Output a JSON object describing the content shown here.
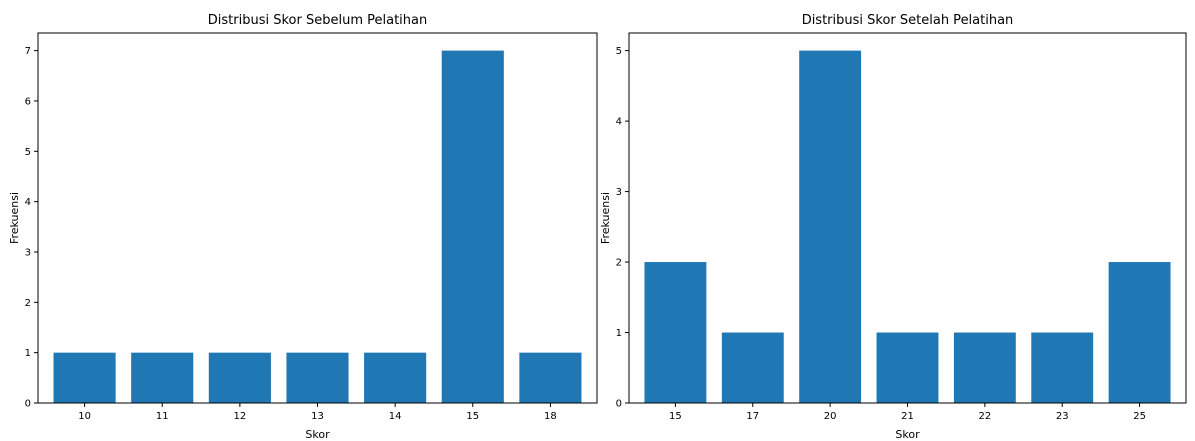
{
  "chart_data": [
    {
      "type": "bar",
      "title": "Distribusi Skor Sebelum Pelatihan",
      "xlabel": "Skor",
      "ylabel": "Frekuensi",
      "categories": [
        "10",
        "11",
        "12",
        "13",
        "14",
        "15",
        "18"
      ],
      "values": [
        1,
        1,
        1,
        1,
        1,
        7,
        1
      ],
      "ylim": [
        0,
        7.35
      ],
      "yticks": [
        0,
        1,
        2,
        3,
        4,
        5,
        6,
        7
      ],
      "grid": false,
      "bar_color": "#1f77b4"
    },
    {
      "type": "bar",
      "title": "Distribusi Skor Setelah Pelatihan",
      "xlabel": "Skor",
      "ylabel": "Frekuensi",
      "categories": [
        "15",
        "17",
        "20",
        "21",
        "22",
        "23",
        "25"
      ],
      "values": [
        2,
        1,
        5,
        1,
        1,
        1,
        2
      ],
      "ylim": [
        0,
        5.25
      ],
      "yticks": [
        0,
        1,
        2,
        3,
        4,
        5
      ],
      "grid": false,
      "bar_color": "#1f77b4"
    }
  ]
}
